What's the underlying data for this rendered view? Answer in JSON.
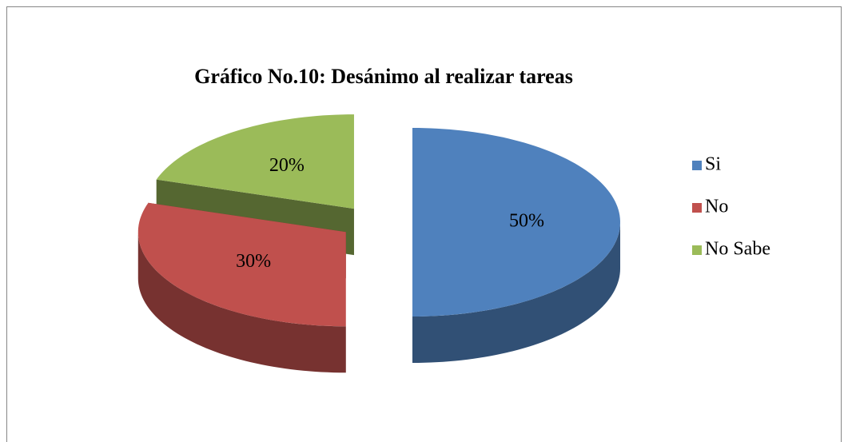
{
  "chart_data": {
    "type": "pie",
    "title": "Gráfico No.10: Desánimo al realizar tareas",
    "categories": [
      "Si",
      "No",
      "No Sabe"
    ],
    "values": [
      50,
      30,
      20
    ],
    "value_labels": [
      "50%",
      "30%",
      "20%"
    ],
    "colors": [
      "#4f81bd",
      "#c0504d",
      "#9bbb59"
    ],
    "legend": "right"
  }
}
